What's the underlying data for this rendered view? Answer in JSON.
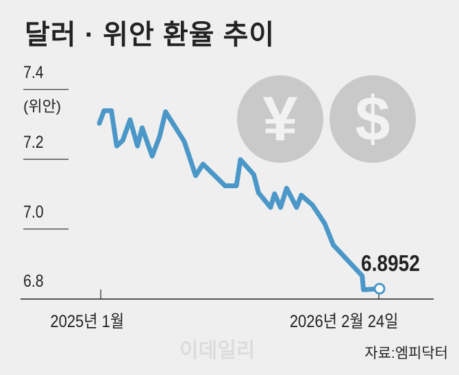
{
  "title": "달러 · 위안 환율 추이",
  "chart_data": {
    "type": "line",
    "title": "달러 · 위안 환율 추이",
    "ylabel": "(위안)",
    "ylim": [
      6.8,
      7.4
    ],
    "yticks": [
      "7.4",
      "7.2",
      "7.0",
      "6.8"
    ],
    "xticks": [
      "2025년 1월",
      "2026년 2월 24일"
    ],
    "xlim": [
      "2025-01-01",
      "2026-02-24"
    ],
    "grid": false,
    "line_color": "#4a97c8",
    "annotation": "6.8952",
    "points": [
      [
        "2025-01-01",
        7.303
      ],
      [
        "2025-01-08",
        7.339
      ],
      [
        "2025-01-19",
        7.339
      ],
      [
        "2025-01-27",
        7.238
      ],
      [
        "2025-02-05",
        7.254
      ],
      [
        "2025-02-16",
        7.313
      ],
      [
        "2025-02-27",
        7.238
      ],
      [
        "2025-03-06",
        7.29
      ],
      [
        "2025-03-21",
        7.209
      ],
      [
        "2025-04-01",
        7.264
      ],
      [
        "2025-04-10",
        7.336
      ],
      [
        "2025-05-08",
        7.251
      ],
      [
        "2025-05-25",
        7.153
      ],
      [
        "2025-06-05",
        7.186
      ],
      [
        "2025-07-08",
        7.124
      ],
      [
        "2025-07-25",
        7.124
      ],
      [
        "2025-07-31",
        7.199
      ],
      [
        "2025-08-20",
        7.156
      ],
      [
        "2025-08-27",
        7.104
      ],
      [
        "2025-09-14",
        7.062
      ],
      [
        "2025-09-20",
        7.101
      ],
      [
        "2025-09-29",
        7.062
      ],
      [
        "2025-10-08",
        7.117
      ],
      [
        "2025-10-23",
        7.062
      ],
      [
        "2025-10-30",
        7.097
      ],
      [
        "2025-11-16",
        7.068
      ],
      [
        "2025-12-04",
        7.016
      ],
      [
        "2025-12-17",
        6.954
      ],
      [
        "2026-01-29",
        6.866
      ],
      [
        "2026-01-31",
        6.826
      ],
      [
        "2026-02-24",
        6.829
      ]
    ]
  },
  "icons": {
    "yuan": "¥",
    "dollar": "$"
  },
  "watermark": "이데일리",
  "source": "자료:엠피닥터"
}
